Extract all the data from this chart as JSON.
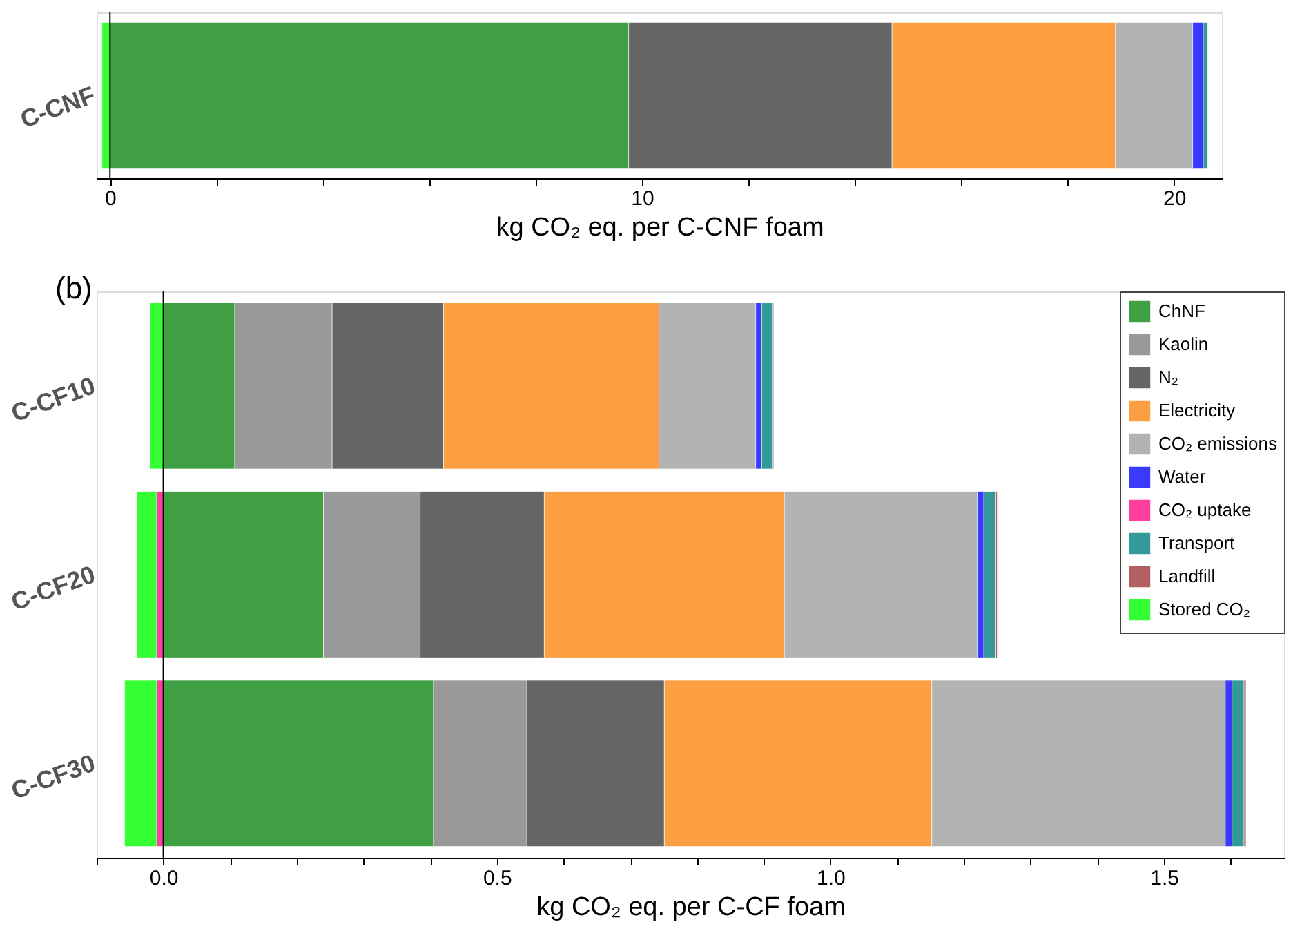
{
  "chart_data": [
    {
      "type": "bar",
      "orientation": "horizontal",
      "stacked": true,
      "categories": [
        "C-CNF"
      ],
      "xlabel": "kg CO₂ eq. per C-CNF foam",
      "xlim": [
        -0.25,
        20.9
      ],
      "xticks": [
        0,
        {
          "value": 2,
          "label": null
        },
        {
          "value": 4,
          "label": null
        },
        {
          "value": 6,
          "label": null
        },
        {
          "value": 8,
          "label": null
        },
        10,
        {
          "value": 12,
          "label": null
        },
        {
          "value": 14,
          "label": null
        },
        {
          "value": 16,
          "label": null
        },
        {
          "value": 18,
          "label": null
        },
        20
      ],
      "grid": false,
      "legend": false,
      "ref_lines": [
        {
          "axis": "x",
          "value": 0,
          "color": "#000000"
        }
      ],
      "series": [
        {
          "color": "#419f43",
          "values": [
            9.75
          ]
        },
        {
          "color": "#656565",
          "values": [
            4.95
          ]
        },
        {
          "color": "#fb9f42",
          "values": [
            4.2
          ]
        },
        {
          "color": "#b3b3b3",
          "values": [
            1.45
          ]
        },
        {
          "color": "#3a3aff",
          "values": [
            0.2
          ]
        },
        {
          "color": "#339999",
          "values": [
            0.08
          ]
        },
        {
          "color": "#33ff33",
          "values": [
            -0.15
          ]
        }
      ]
    },
    {
      "type": "bar",
      "orientation": "horizontal",
      "stacked": true,
      "categories": [
        "C-CF10",
        "C-CF20",
        "C-CF30"
      ],
      "xlabel": "kg CO₂ eq. per C-CF foam",
      "xlim": [
        -0.1,
        1.68
      ],
      "xticks": [
        {
          "value": -0.1,
          "label": null
        },
        {
          "value": 0,
          "label": "0.0"
        },
        {
          "value": 0.1,
          "label": null
        },
        {
          "value": 0.2,
          "label": null
        },
        {
          "value": 0.3,
          "label": null
        },
        {
          "value": 0.4,
          "label": null
        },
        0.5,
        {
          "value": 0.6,
          "label": null
        },
        {
          "value": 0.7,
          "label": null
        },
        {
          "value": 0.8,
          "label": null
        },
        {
          "value": 0.9,
          "label": null
        },
        {
          "value": 1,
          "label": "1.0"
        },
        {
          "value": 1.1,
          "label": null
        },
        {
          "value": 1.2,
          "label": null
        },
        {
          "value": 1.3,
          "label": null
        },
        {
          "value": 1.4,
          "label": null
        },
        1.5,
        {
          "value": 1.6,
          "label": null
        }
      ],
      "grid": false,
      "legend": "top right",
      "annotations": [
        "(b)"
      ],
      "ref_lines": [
        {
          "axis": "x",
          "value": 0,
          "color": "#000000"
        }
      ],
      "series": [
        {
          "name": "ChNF",
          "color": "#419f43",
          "values": [
            0.107,
            0.24,
            0.405
          ]
        },
        {
          "name": "Kaolin",
          "color": "#999999",
          "values": [
            0.146,
            0.145,
            0.14
          ]
        },
        {
          "name": "N₂",
          "color": "#656565",
          "values": [
            0.167,
            0.186,
            0.206
          ]
        },
        {
          "name": "Electricity",
          "color": "#fb9f42",
          "values": [
            0.323,
            0.36,
            0.401
          ]
        },
        {
          "name": "CO₂ emissions",
          "color": "#b3b3b3",
          "values": [
            0.145,
            0.289,
            0.44
          ]
        },
        {
          "name": "Water",
          "color": "#3a3aff",
          "values": [
            0.009,
            0.01,
            0.01
          ]
        },
        {
          "name": "CO₂ uptake",
          "color": "#ff3fa0",
          "values": [
            null,
            -0.01,
            -0.01
          ]
        },
        {
          "name": "Transport",
          "color": "#339999",
          "values": [
            0.016,
            0.018,
            0.018
          ]
        },
        {
          "name": "Landfill",
          "color": "#b06060",
          "values": [
            0.002,
            0.002,
            0.003
          ]
        },
        {
          "name": "Stored CO₂",
          "color": "#33ff33",
          "values": [
            -0.02,
            -0.03,
            -0.048
          ]
        }
      ]
    }
  ]
}
